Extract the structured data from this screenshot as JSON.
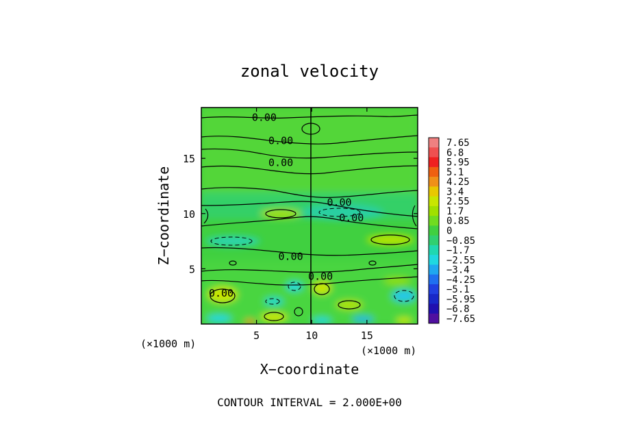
{
  "chart_data": {
    "type": "heatmap",
    "title": "zonal velocity",
    "xlabel": "X−coordinate",
    "ylabel": "Z−coordinate",
    "xlim": [
      0,
      19.6
    ],
    "ylim": [
      0,
      19.6
    ],
    "x_ticks": [
      5,
      10,
      15
    ],
    "x_tick_labels": [
      "5",
      "10",
      "15"
    ],
    "z_ticks": [
      5,
      10,
      15
    ],
    "z_tick_labels": [
      "5",
      "10",
      "15"
    ],
    "x_unit_left": "(×1000 m)",
    "x_unit_right": "(×1000 m)",
    "footer": "CONTOUR INTERVAL = 2.000E+00",
    "colorbar": {
      "levels": [
        "7.65",
        "6.8",
        "5.95",
        "5.1",
        "4.25",
        "3.4",
        "2.55",
        "1.7",
        "0.85",
        "0",
        "−0.85",
        "−1.7",
        "−2.55",
        "−3.4",
        "−4.25",
        "−5.1",
        "−5.95",
        "−6.8",
        "−7.65"
      ],
      "colors": [
        "#f08080",
        "#f05050",
        "#f02020",
        "#f06010",
        "#f09018",
        "#e8c800",
        "#c8e600",
        "#a0e000",
        "#70dc20",
        "#40d040",
        "#30d070",
        "#20d8b0",
        "#20d8e0",
        "#20a8f0",
        "#2070f0",
        "#2040e0",
        "#1828c8",
        "#2010b0",
        "#5010a0"
      ]
    },
    "contour_labels": [
      {
        "text": "0.00",
        "x": 5.7,
        "z": 18.7
      },
      {
        "text": "0.00",
        "x": 7.2,
        "z": 16.6
      },
      {
        "text": "0.00",
        "x": 7.2,
        "z": 14.6
      },
      {
        "text": "0.00",
        "x": 12.5,
        "z": 11.0
      },
      {
        "text": "0.00",
        "x": 13.6,
        "z": 9.6
      },
      {
        "text": "0.00",
        "x": 8.1,
        "z": 6.1
      },
      {
        "text": "0.00",
        "x": 10.8,
        "z": 4.3
      },
      {
        "text": "0.00",
        "x": 1.8,
        "z": 2.8
      }
    ]
  }
}
